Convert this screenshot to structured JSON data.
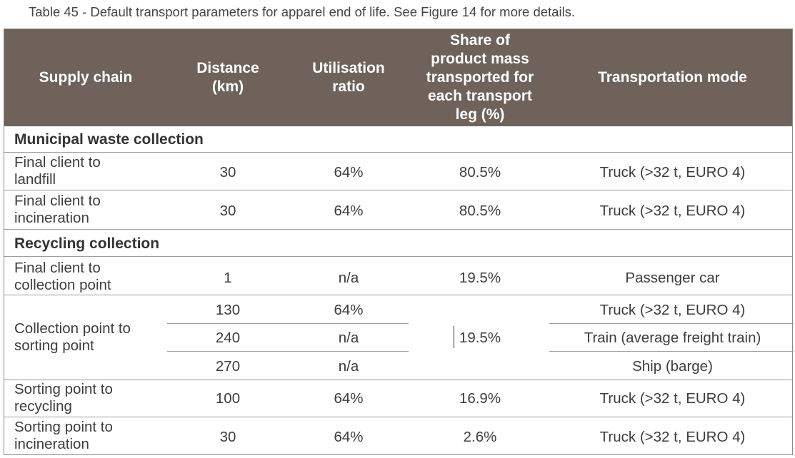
{
  "caption": "Table 45 - Default transport parameters for apparel end of life. See Figure 14 for more details.",
  "headers": {
    "supply_chain": "Supply chain",
    "distance": "Distance\n(km)",
    "utilisation": "Utilisation\nratio",
    "share": "Share of\nproduct mass\ntransported for\neach transport\nleg (%)",
    "mode": "Transportation mode"
  },
  "sections": {
    "municipal": "Municipal waste collection",
    "recycling": "Recycling collection"
  },
  "rows": [
    {
      "label": "Final client to\nlandfill",
      "distance": "30",
      "utilisation": "64%",
      "share": "80.5%",
      "mode": "Truck (>32 t, EURO 4)"
    },
    {
      "label": "Final client to\nincineration",
      "distance": "30",
      "utilisation": "64%",
      "share": "80.5%",
      "mode": "Truck (>32 t, EURO 4)"
    },
    {
      "label": "Final client to\ncollection point",
      "distance": "1",
      "utilisation": "n/a",
      "share": "19.5%",
      "mode": "Passenger car"
    },
    {
      "label": "Collection point to\nsorting point",
      "share": "19.5%",
      "subrows": [
        {
          "distance": "130",
          "utilisation": "64%",
          "mode": "Truck (>32 t, EURO 4)"
        },
        {
          "distance": "240",
          "utilisation": "n/a",
          "mode": "Train (average freight train)"
        },
        {
          "distance": "270",
          "utilisation": "n/a",
          "mode": "Ship (barge)"
        }
      ]
    },
    {
      "label": "Sorting point to\nrecycling",
      "distance": "100",
      "utilisation": "64%",
      "share": "16.9%",
      "mode": "Truck (>32 t, EURO 4)"
    },
    {
      "label": "Sorting point to\nincineration",
      "distance": "30",
      "utilisation": "64%",
      "share": "2.6%",
      "mode": "Truck (>32 t, EURO 4)"
    }
  ]
}
